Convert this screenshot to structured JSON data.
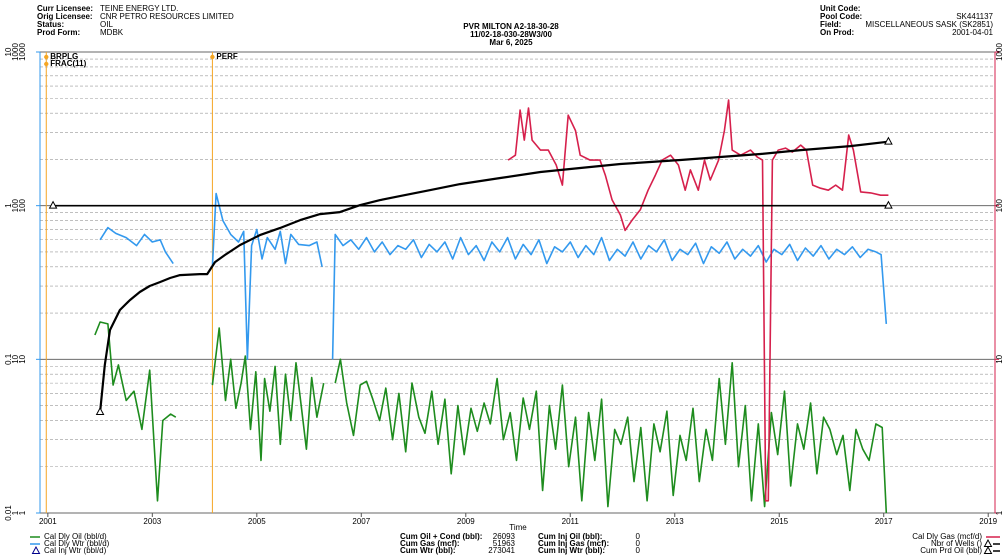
{
  "chart_data": {
    "type": "line",
    "log": true,
    "grid": true,
    "header": {
      "left": [
        {
          "label": "Curr Licensee:",
          "value": "TEINE ENERGY LTD."
        },
        {
          "label": "Orig Licensee:",
          "value": "CNR PETRO RESOURCES LIMITED"
        },
        {
          "label": "Status:",
          "value": "OIL"
        },
        {
          "label": "Prod Form:",
          "value": "MDBK"
        }
      ],
      "title": [
        "PVR MILTON A2-18-30-28",
        "11/02-18-030-28W3/00",
        "Mar 6, 2025"
      ],
      "right": [
        {
          "label": "Unit Code:"
        },
        {
          "label": "Pool Code:",
          "value": "SK441137"
        },
        {
          "label": "Field:",
          "value": "MISCELLANEOUS SASK (SK2851)"
        },
        {
          "label": "On Prod:",
          "value": "2001-04-01"
        }
      ]
    },
    "x_label": "Time",
    "xlim": [
      2000.85,
      2019.13
    ],
    "xticks": [
      2001,
      2003,
      2005,
      2007,
      2009,
      2011,
      2013,
      2015,
      2017,
      2019
    ],
    "y_axes": [
      {
        "color": "#00008b",
        "ylim": [
          0.01,
          10
        ],
        "yticks": [
          0.01,
          0.1,
          1,
          10
        ]
      },
      {
        "color": "#3399ee",
        "ylim": [
          1,
          1000
        ],
        "yticks": [
          1,
          10,
          100,
          1000
        ]
      },
      {
        "color": "#1e8c1e",
        "ylim": [
          1,
          1000
        ],
        "yticks": [
          1,
          10,
          100,
          1000
        ]
      }
    ],
    "y2": {
      "color": "#d6204c",
      "ylim": [
        1,
        1000
      ],
      "yticks": [
        1,
        10,
        100,
        1000
      ]
    },
    "events": [
      {
        "label": "BRPLG",
        "x": 2000.97,
        "color": "#f5a623"
      },
      {
        "label": "FRAC(11)",
        "x": 2000.97,
        "color": "#f5a623"
      },
      {
        "label": "PERF",
        "x": 2004.15,
        "color": "#f5a623"
      }
    ],
    "series": [
      {
        "name": "Cal Dly Oil (bbl/d)",
        "color": "#1e8c1e",
        "y_axis": 2,
        "x": [
          2001.9,
          2002.0,
          2002.15,
          2002.25,
          2002.35,
          2002.5,
          2002.65,
          2002.8,
          2002.95,
          2003.1,
          2003.2,
          2003.35,
          2003.45,
          2003.6,
          2004.15,
          2004.28,
          2004.4,
          2004.5,
          2004.6,
          2004.7,
          2004.78,
          2004.88,
          2004.98,
          2005.08,
          2005.15,
          2005.25,
          2005.35,
          2005.45,
          2005.55,
          2005.65,
          2005.75,
          2005.85,
          2005.95,
          2006.05,
          2006.15,
          2006.28,
          2006.38,
          2006.5,
          2006.6,
          2006.72,
          2006.85,
          2006.98,
          2007.1,
          2007.22,
          2007.35,
          2007.47,
          2007.6,
          2007.72,
          2007.85,
          2007.97,
          2008.1,
          2008.22,
          2008.35,
          2008.47,
          2008.6,
          2008.72,
          2008.85,
          2008.97,
          2009.1,
          2009.22,
          2009.35,
          2009.47,
          2009.6,
          2009.72,
          2009.85,
          2009.97,
          2010.1,
          2010.22,
          2010.35,
          2010.47,
          2010.6,
          2010.72,
          2010.85,
          2010.97,
          2011.1,
          2011.22,
          2011.35,
          2011.47,
          2011.6,
          2011.72,
          2011.85,
          2011.97,
          2012.1,
          2012.22,
          2012.35,
          2012.47,
          2012.6,
          2012.72,
          2012.85,
          2012.97,
          2013.1,
          2013.22,
          2013.35,
          2013.47,
          2013.6,
          2013.72,
          2013.85,
          2013.97,
          2014.1,
          2014.22,
          2014.35,
          2014.47,
          2014.6,
          2014.72,
          2014.85,
          2014.97,
          2015.1,
          2015.22,
          2015.35,
          2015.47,
          2015.6,
          2015.72,
          2015.85,
          2015.97,
          2016.1,
          2016.22,
          2016.35,
          2016.47,
          2016.6,
          2016.72,
          2016.85,
          2016.97,
          2017.05
        ],
        "values": [
          14.4,
          17.5,
          17,
          6.8,
          9.2,
          5.4,
          6.2,
          3.5,
          8.5,
          1.2,
          4.0,
          4.4,
          4.2,
          null,
          6.8,
          16,
          5.4,
          10,
          4.8,
          7,
          10.5,
          3.5,
          8.3,
          2.2,
          7.5,
          4.6,
          9,
          2.8,
          8,
          4,
          9.5,
          5,
          2.6,
          7.6,
          4.2,
          7,
          null,
          7,
          10,
          5.2,
          3.2,
          6.8,
          7.2,
          5.5,
          4,
          6.5,
          3,
          6,
          2.5,
          7,
          4.2,
          3.3,
          6.2,
          2.8,
          5.5,
          1.8,
          5,
          2.4,
          4.8,
          3.4,
          5.2,
          3.8,
          7.5,
          3,
          4.5,
          2.2,
          5.6,
          3.5,
          6.2,
          1.4,
          5,
          2.6,
          6.8,
          2,
          4.2,
          1.2,
          4.5,
          2.2,
          5.5,
          1.1,
          3.5,
          2.8,
          4.2,
          1.6,
          3.6,
          1.2,
          3.8,
          2.5,
          4.6,
          1.3,
          3.2,
          2.2,
          4.8,
          1.6,
          3.5,
          2.2,
          7.5,
          2.8,
          9.5,
          2,
          5,
          1.2,
          3.8,
          1.1,
          4.5,
          2.4,
          6.2,
          1.5,
          3.8,
          2.6,
          5.2,
          1.8,
          4.2,
          3.5,
          2.4,
          3.2,
          1.4,
          3.5,
          2.6,
          2.2,
          3.8,
          3.6,
          1.0
        ]
      },
      {
        "name": "Cal Dly Wtr (bbl/d)",
        "color": "#3399ee",
        "y_axis": 1,
        "x": [
          2002.0,
          2002.15,
          2002.3,
          2002.5,
          2002.7,
          2002.85,
          2003.0,
          2003.15,
          2003.25,
          2003.4,
          2003.6,
          2004.15,
          2004.22,
          2004.35,
          2004.5,
          2004.65,
          2004.75,
          2004.82,
          2004.9,
          2005.0,
          2005.1,
          2005.2,
          2005.35,
          2005.45,
          2005.55,
          2005.65,
          2005.8,
          2006.0,
          2006.15,
          2006.25,
          2006.35,
          2006.45,
          2006.5,
          2006.65,
          2006.8,
          2006.95,
          2007.1,
          2007.25,
          2007.4,
          2007.55,
          2007.7,
          2007.85,
          2008.0,
          2008.15,
          2008.3,
          2008.45,
          2008.6,
          2008.75,
          2008.9,
          2009.05,
          2009.2,
          2009.35,
          2009.5,
          2009.65,
          2009.8,
          2009.95,
          2010.1,
          2010.25,
          2010.4,
          2010.55,
          2010.7,
          2010.85,
          2011.0,
          2011.15,
          2011.3,
          2011.45,
          2011.6,
          2011.75,
          2011.9,
          2012.05,
          2012.2,
          2012.35,
          2012.5,
          2012.65,
          2012.8,
          2012.95,
          2013.1,
          2013.25,
          2013.4,
          2013.55,
          2013.7,
          2013.85,
          2014.0,
          2014.15,
          2014.3,
          2014.45,
          2014.6,
          2014.75,
          2014.9,
          2015.05,
          2015.2,
          2015.35,
          2015.5,
          2015.65,
          2015.8,
          2015.95,
          2016.1,
          2016.25,
          2016.4,
          2016.55,
          2016.7,
          2016.85,
          2016.95,
          2017.05
        ],
        "values": [
          60,
          72,
          66,
          62,
          55,
          65,
          58,
          60,
          50,
          42,
          null,
          40,
          120,
          80,
          65,
          58,
          68,
          10,
          55,
          70,
          45,
          62,
          52,
          68,
          42,
          65,
          56,
          55,
          58,
          40,
          null,
          10,
          65,
          55,
          60,
          52,
          62,
          50,
          58,
          48,
          55,
          52,
          60,
          46,
          56,
          50,
          58,
          45,
          62,
          48,
          55,
          44,
          58,
          50,
          62,
          45,
          56,
          48,
          60,
          42,
          54,
          50,
          58,
          46,
          55,
          48,
          62,
          44,
          52,
          47,
          58,
          45,
          55,
          50,
          60,
          44,
          52,
          48,
          57,
          42,
          54,
          49,
          58,
          45,
          52,
          47,
          55,
          43,
          52,
          48,
          56,
          44,
          53,
          47,
          55,
          45,
          52,
          48,
          54,
          46,
          52,
          50,
          48,
          17
        ]
      },
      {
        "name": "Cal Inj Wtr (bbl/d)",
        "color": "#00008b",
        "y_axis": 1,
        "marker": "triangle",
        "x": [],
        "values": []
      },
      {
        "name": "Cal Dly Gas (mcf/d)",
        "color": "#d6204c",
        "axis": "y2",
        "x": [
          2009.81,
          2009.95,
          2010.04,
          2010.12,
          2010.2,
          2010.27,
          2010.43,
          2010.58,
          2010.73,
          2010.85,
          2010.96,
          2011.1,
          2011.19,
          2011.38,
          2011.57,
          2011.67,
          2011.8,
          2011.96,
          2012.05,
          2012.19,
          2012.34,
          2012.49,
          2012.63,
          2012.76,
          2012.92,
          2013.07,
          2013.2,
          2013.3,
          2013.45,
          2013.57,
          2013.68,
          2013.84,
          2013.95,
          2014.03,
          2014.1,
          2014.26,
          2014.45,
          2014.58,
          2014.68,
          2014.74,
          2014.79,
          2014.87,
          2014.98,
          2015.12,
          2015.25,
          2015.41,
          2015.52,
          2015.64,
          2015.79,
          2015.94,
          2016.08,
          2016.21,
          2016.33,
          2016.42,
          2016.56,
          2016.75,
          2016.94,
          2017.09
        ],
        "values": [
          198,
          213,
          419,
          267,
          432,
          267,
          230,
          230,
          184,
          136,
          388,
          308,
          213,
          198,
          198,
          158,
          109,
          87,
          69,
          81,
          94,
          126,
          158,
          198,
          213,
          184,
          126,
          171,
          126,
          198,
          147,
          198,
          308,
          487,
          230,
          213,
          230,
          207,
          198,
          1.2,
          1.2,
          198,
          230,
          237,
          223,
          248,
          230,
          136,
          130,
          126,
          136,
          126,
          288,
          230,
          123,
          121,
          117,
          117
        ]
      },
      {
        "name": "Nbr of Wells ()",
        "color": "#000000",
        "y_axis": 0,
        "marker": "triangle",
        "x": [
          2001.1,
          2017.09
        ],
        "values": [
          1,
          1
        ]
      },
      {
        "name": "Cum Prd Oil (bbl)",
        "color": "#000000",
        "ylim": [
          100,
          100000
        ],
        "marker": "triangle",
        "x": [
          2002.0,
          2002.09,
          2002.19,
          2002.38,
          2002.57,
          2002.76,
          2002.95,
          2003.15,
          2003.34,
          2003.53,
          2003.91,
          2004.05,
          2004.2,
          2004.39,
          2004.68,
          2005.06,
          2005.44,
          2005.83,
          2006.21,
          2006.59,
          2006.98,
          2007.36,
          2007.74,
          2008.32,
          2008.89,
          2009.66,
          2010.43,
          2011.19,
          2011.96,
          2013.11,
          2013.87,
          2014.64,
          2015.41,
          2016.36,
          2017.09
        ],
        "values": [
          454,
          918,
          1552,
          2094,
          2431,
          2741,
          3000,
          3184,
          3381,
          3532,
          3589,
          3589,
          4296,
          4773,
          5543,
          6437,
          7149,
          8057,
          8813,
          9080,
          10090,
          10870,
          11540,
          12620,
          13820,
          15130,
          16560,
          17580,
          18660,
          19820,
          20720,
          21680,
          23010,
          24430,
          26093
        ]
      }
    ],
    "stats": [
      {
        "label": "Cum Oil + Cond (bbl):",
        "value": "26093"
      },
      {
        "label": "Cum Gas (mcf):",
        "value": "51963"
      },
      {
        "label": "Cum Wtr (bbl):",
        "value": "273041"
      },
      {
        "label": "Cum Inj Oil (bbl):",
        "value": "0"
      },
      {
        "label": "Cum Inj Gas (mcf):",
        "value": "0"
      },
      {
        "label": "Cum Inj Wtr (bbl):",
        "value": "0"
      }
    ]
  }
}
